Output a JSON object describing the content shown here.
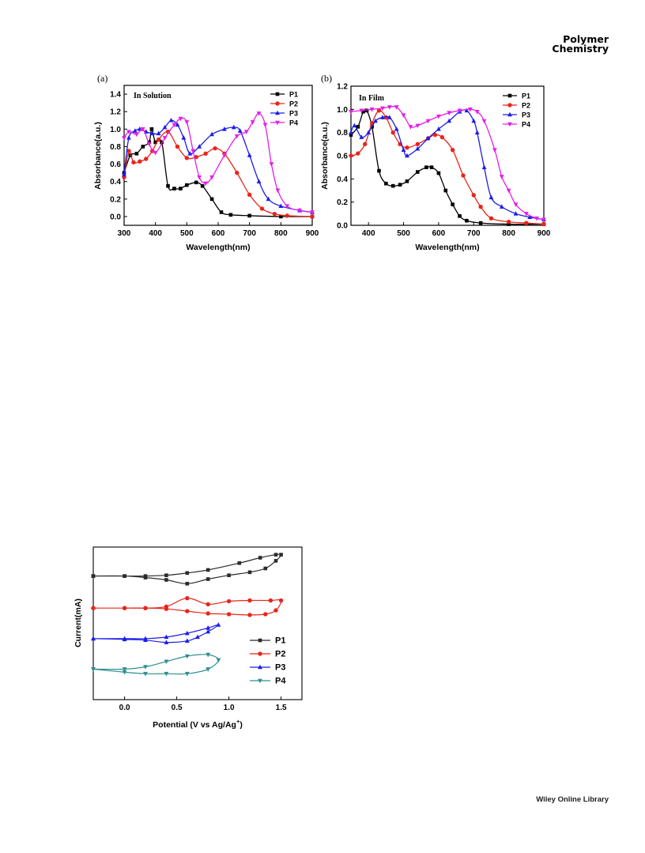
{
  "header": {
    "journal_line1": "Polymer",
    "journal_line2": "Chemistry"
  },
  "footer": {
    "publisher": "Wiley Online Library"
  },
  "chart_data": [
    {
      "type": "line",
      "panel_label": "(a)",
      "annotation": "In Solution",
      "xlabel": "Wavelength(nm)",
      "ylabel": "Absorbance(a.u.)",
      "xlim": [
        300,
        900
      ],
      "ylim": [
        -0.1,
        1.5
      ],
      "xticks": [
        "300",
        "400",
        "500",
        "600",
        "700",
        "800",
        "900"
      ],
      "yticks": [
        "0.0",
        "0.2",
        "0.4",
        "0.6",
        "0.8",
        "1.0",
        "1.2",
        "1.4"
      ],
      "legend_position": "top-right",
      "series": [
        {
          "name": "P1",
          "color": "#000000",
          "marker": "square",
          "points": [
            [
              300,
              0.5
            ],
            [
              320,
              0.7
            ],
            [
              340,
              0.72
            ],
            [
              360,
              0.8
            ],
            [
              380,
              0.85
            ],
            [
              388,
              1.0
            ],
            [
              400,
              0.85
            ],
            [
              420,
              0.85
            ],
            [
              440,
              0.35
            ],
            [
              460,
              0.32
            ],
            [
              480,
              0.32
            ],
            [
              500,
              0.36
            ],
            [
              530,
              0.39
            ],
            [
              550,
              0.35
            ],
            [
              580,
              0.2
            ],
            [
              610,
              0.05
            ],
            [
              640,
              0.02
            ],
            [
              700,
              0.01
            ],
            [
              800,
              0.0
            ],
            [
              900,
              0.0
            ]
          ]
        },
        {
          "name": "P2",
          "color": "#e8251b",
          "marker": "circle",
          "points": [
            [
              300,
              0.45
            ],
            [
              315,
              0.75
            ],
            [
              330,
              0.62
            ],
            [
              350,
              0.63
            ],
            [
              370,
              0.66
            ],
            [
              390,
              0.75
            ],
            [
              410,
              0.88
            ],
            [
              440,
              0.97
            ],
            [
              470,
              0.8
            ],
            [
              500,
              0.67
            ],
            [
              530,
              0.68
            ],
            [
              560,
              0.72
            ],
            [
              590,
              0.78
            ],
            [
              620,
              0.72
            ],
            [
              660,
              0.5
            ],
            [
              700,
              0.25
            ],
            [
              740,
              0.09
            ],
            [
              780,
              0.03
            ],
            [
              820,
              0.01
            ],
            [
              900,
              0.0
            ]
          ]
        },
        {
          "name": "P3",
          "color": "#1d1de8",
          "marker": "triangle",
          "points": [
            [
              300,
              0.48
            ],
            [
              315,
              0.9
            ],
            [
              335,
              0.98
            ],
            [
              350,
              1.0
            ],
            [
              370,
              0.97
            ],
            [
              390,
              0.95
            ],
            [
              410,
              0.95
            ],
            [
              430,
              1.02
            ],
            [
              450,
              1.1
            ],
            [
              470,
              1.05
            ],
            [
              490,
              0.9
            ],
            [
              510,
              0.72
            ],
            [
              540,
              0.8
            ],
            [
              580,
              0.94
            ],
            [
              620,
              1.0
            ],
            [
              650,
              1.02
            ],
            [
              670,
              0.98
            ],
            [
              700,
              0.7
            ],
            [
              730,
              0.4
            ],
            [
              760,
              0.2
            ],
            [
              800,
              0.12
            ],
            [
              860,
              0.07
            ],
            [
              900,
              0.05
            ]
          ]
        },
        {
          "name": "P4",
          "color": "#e61fe6",
          "marker": "inverted-triangle",
          "points": [
            [
              300,
              0.9
            ],
            [
              315,
              0.97
            ],
            [
              340,
              0.94
            ],
            [
              360,
              1.0
            ],
            [
              380,
              0.83
            ],
            [
              400,
              0.73
            ],
            [
              430,
              0.9
            ],
            [
              460,
              1.05
            ],
            [
              480,
              1.12
            ],
            [
              500,
              1.08
            ],
            [
              520,
              0.75
            ],
            [
              540,
              0.45
            ],
            [
              560,
              0.38
            ],
            [
              580,
              0.45
            ],
            [
              620,
              0.7
            ],
            [
              660,
              0.92
            ],
            [
              690,
              0.97
            ],
            [
              710,
              1.08
            ],
            [
              730,
              1.18
            ],
            [
              750,
              1.05
            ],
            [
              770,
              0.6
            ],
            [
              790,
              0.3
            ],
            [
              820,
              0.12
            ],
            [
              860,
              0.07
            ],
            [
              900,
              0.05
            ]
          ]
        }
      ]
    },
    {
      "type": "line",
      "panel_label": "(b)",
      "annotation": "In Film",
      "xlabel": "Wavelength(nm)",
      "ylabel": "Absorbance(a.u.)",
      "xlim": [
        350,
        900
      ],
      "ylim": [
        0.0,
        1.2
      ],
      "xticks": [
        "400",
        "500",
        "600",
        "700",
        "800",
        "900"
      ],
      "yticks": [
        "0.0",
        "0.2",
        "0.4",
        "0.6",
        "0.8",
        "1.0",
        "1.2"
      ],
      "legend_position": "top-right",
      "series": [
        {
          "name": "P1",
          "color": "#000000",
          "marker": "square",
          "points": [
            [
              350,
              0.78
            ],
            [
              370,
              0.85
            ],
            [
              385,
              0.98
            ],
            [
              395,
              0.99
            ],
            [
              410,
              0.85
            ],
            [
              430,
              0.47
            ],
            [
              450,
              0.36
            ],
            [
              470,
              0.34
            ],
            [
              490,
              0.35
            ],
            [
              510,
              0.38
            ],
            [
              540,
              0.46
            ],
            [
              565,
              0.5
            ],
            [
              580,
              0.5
            ],
            [
              600,
              0.45
            ],
            [
              620,
              0.3
            ],
            [
              640,
              0.18
            ],
            [
              660,
              0.08
            ],
            [
              680,
              0.04
            ],
            [
              720,
              0.02
            ],
            [
              800,
              0.01
            ],
            [
              900,
              0.01
            ]
          ]
        },
        {
          "name": "P2",
          "color": "#e8251b",
          "marker": "circle",
          "points": [
            [
              350,
              0.6
            ],
            [
              370,
              0.62
            ],
            [
              390,
              0.7
            ],
            [
              410,
              0.88
            ],
            [
              430,
              0.99
            ],
            [
              450,
              0.93
            ],
            [
              470,
              0.8
            ],
            [
              490,
              0.7
            ],
            [
              510,
              0.67
            ],
            [
              540,
              0.7
            ],
            [
              570,
              0.75
            ],
            [
              590,
              0.78
            ],
            [
              610,
              0.76
            ],
            [
              640,
              0.65
            ],
            [
              670,
              0.43
            ],
            [
              700,
              0.26
            ],
            [
              720,
              0.16
            ],
            [
              750,
              0.06
            ],
            [
              800,
              0.03
            ],
            [
              850,
              0.02
            ],
            [
              900,
              0.01
            ]
          ]
        },
        {
          "name": "P3",
          "color": "#1d1de8",
          "marker": "triangle",
          "points": [
            [
              350,
              0.8
            ],
            [
              360,
              0.86
            ],
            [
              380,
              0.76
            ],
            [
              400,
              0.8
            ],
            [
              420,
              0.9
            ],
            [
              440,
              0.93
            ],
            [
              460,
              0.93
            ],
            [
              480,
              0.83
            ],
            [
              500,
              0.65
            ],
            [
              510,
              0.6
            ],
            [
              540,
              0.66
            ],
            [
              570,
              0.75
            ],
            [
              600,
              0.83
            ],
            [
              630,
              0.9
            ],
            [
              660,
              0.98
            ],
            [
              680,
              0.99
            ],
            [
              700,
              0.9
            ],
            [
              710,
              0.8
            ],
            [
              730,
              0.5
            ],
            [
              750,
              0.24
            ],
            [
              780,
              0.16
            ],
            [
              820,
              0.1
            ],
            [
              860,
              0.07
            ],
            [
              900,
              0.05
            ]
          ]
        },
        {
          "name": "P4",
          "color": "#e61fe6",
          "marker": "inverted-triangle",
          "points": [
            [
              350,
              0.98
            ],
            [
              380,
              0.99
            ],
            [
              410,
              1.0
            ],
            [
              440,
              1.01
            ],
            [
              460,
              1.02
            ],
            [
              480,
              1.02
            ],
            [
              500,
              0.95
            ],
            [
              520,
              0.85
            ],
            [
              540,
              0.86
            ],
            [
              570,
              0.9
            ],
            [
              600,
              0.94
            ],
            [
              630,
              0.97
            ],
            [
              660,
              0.99
            ],
            [
              690,
              1.0
            ],
            [
              710,
              0.98
            ],
            [
              730,
              0.9
            ],
            [
              760,
              0.65
            ],
            [
              780,
              0.42
            ],
            [
              800,
              0.3
            ],
            [
              820,
              0.18
            ],
            [
              850,
              0.1
            ],
            [
              880,
              0.06
            ],
            [
              900,
              0.05
            ]
          ]
        }
      ]
    },
    {
      "type": "line",
      "xlabel": "Potential (V vs Ag/Ag",
      "xlabel_sup": "+",
      "xlabel_tail": ")",
      "ylabel": "Current(mA)",
      "xlim": [
        -0.3,
        1.7
      ],
      "ylim": [
        -10,
        10
      ],
      "xticks": [
        "0.0",
        "0.5",
        "1.0",
        "1.5"
      ],
      "legend_position": "right-middle",
      "series": [
        {
          "name": "P1",
          "color": "#2b2b2b",
          "marker": "square",
          "points": [
            [
              -0.3,
              6.2
            ],
            [
              0.0,
              6.2
            ],
            [
              0.2,
              6.0
            ],
            [
              0.4,
              5.7
            ],
            [
              0.6,
              5.2
            ],
            [
              0.8,
              5.8
            ],
            [
              1.0,
              6.3
            ],
            [
              1.2,
              6.7
            ],
            [
              1.35,
              7.2
            ],
            [
              1.45,
              8.2
            ],
            [
              1.5,
              9.0
            ],
            [
              1.45,
              9.0
            ],
            [
              1.3,
              8.6
            ],
            [
              1.1,
              7.9
            ],
            [
              0.8,
              7.0
            ],
            [
              0.6,
              6.6
            ],
            [
              0.4,
              6.3
            ],
            [
              0.2,
              6.2
            ],
            [
              0.0,
              6.2
            ],
            [
              -0.3,
              6.2
            ]
          ]
        },
        {
          "name": "P2",
          "color": "#e8251b",
          "marker": "circle",
          "points": [
            [
              -0.3,
              2.0
            ],
            [
              0.0,
              2.0
            ],
            [
              0.2,
              2.0
            ],
            [
              0.4,
              1.9
            ],
            [
              0.6,
              1.6
            ],
            [
              0.8,
              1.3
            ],
            [
              1.0,
              1.2
            ],
            [
              1.2,
              1.1
            ],
            [
              1.35,
              1.2
            ],
            [
              1.45,
              1.7
            ],
            [
              1.5,
              3.0
            ],
            [
              1.4,
              3.0
            ],
            [
              1.2,
              3.0
            ],
            [
              1.0,
              2.9
            ],
            [
              0.8,
              2.5
            ],
            [
              0.6,
              3.3
            ],
            [
              0.4,
              2.2
            ],
            [
              0.2,
              2.0
            ],
            [
              0.0,
              2.0
            ],
            [
              -0.3,
              2.0
            ]
          ]
        },
        {
          "name": "P3",
          "color": "#1d1de8",
          "marker": "triangle",
          "points": [
            [
              -0.3,
              -2.0
            ],
            [
              0.0,
              -2.1
            ],
            [
              0.2,
              -2.2
            ],
            [
              0.4,
              -2.5
            ],
            [
              0.6,
              -2.3
            ],
            [
              0.7,
              -1.8
            ],
            [
              0.8,
              -1.1
            ],
            [
              0.9,
              -0.2
            ],
            [
              0.8,
              -0.6
            ],
            [
              0.6,
              -1.3
            ],
            [
              0.4,
              -1.8
            ],
            [
              0.2,
              -2.0
            ],
            [
              0.0,
              -2.0
            ],
            [
              -0.3,
              -2.0
            ]
          ]
        },
        {
          "name": "P4",
          "color": "#2f8f8f",
          "marker": "inverted-triangle",
          "points": [
            [
              -0.3,
              -6.0
            ],
            [
              0.0,
              -6.4
            ],
            [
              0.2,
              -6.6
            ],
            [
              0.4,
              -6.6
            ],
            [
              0.6,
              -6.6
            ],
            [
              0.8,
              -6.0
            ],
            [
              0.9,
              -4.8
            ],
            [
              0.8,
              -4.1
            ],
            [
              0.6,
              -4.3
            ],
            [
              0.4,
              -5.0
            ],
            [
              0.2,
              -5.7
            ],
            [
              0.0,
              -6.0
            ],
            [
              -0.3,
              -6.0
            ]
          ]
        }
      ]
    }
  ]
}
